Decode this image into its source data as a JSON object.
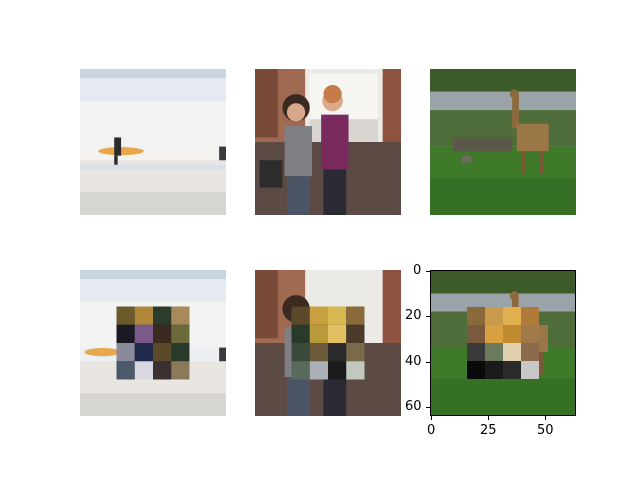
{
  "figure": {
    "rows": 2,
    "cols": 3,
    "images": [
      {
        "row": 1,
        "col": 1,
        "subject": "surfers on beach",
        "patched": false
      },
      {
        "row": 1,
        "col": 2,
        "subject": "two women in kitchen",
        "patched": false
      },
      {
        "row": 1,
        "col": 3,
        "subject": "giraffe in grassland",
        "patched": false
      },
      {
        "row": 2,
        "col": 1,
        "subject": "surfers on beach",
        "patched": true
      },
      {
        "row": 2,
        "col": 2,
        "subject": "two women in kitchen",
        "patched": true
      },
      {
        "row": 2,
        "col": 3,
        "subject": "giraffe in grassland",
        "patched": true,
        "axes_shown": true
      }
    ]
  },
  "axes": {
    "x_ticks": [
      "0",
      "25",
      "50"
    ],
    "y_ticks": [
      "0",
      "20",
      "40",
      "60"
    ],
    "xlim": [
      0,
      64
    ],
    "ylim": [
      64,
      0
    ]
  },
  "colors": {
    "beach_sky": "#dfe7ee",
    "beach_sand": "#e7e4df",
    "kitchen_wall": "#9a5a45",
    "grass": "#3f7a2a"
  }
}
